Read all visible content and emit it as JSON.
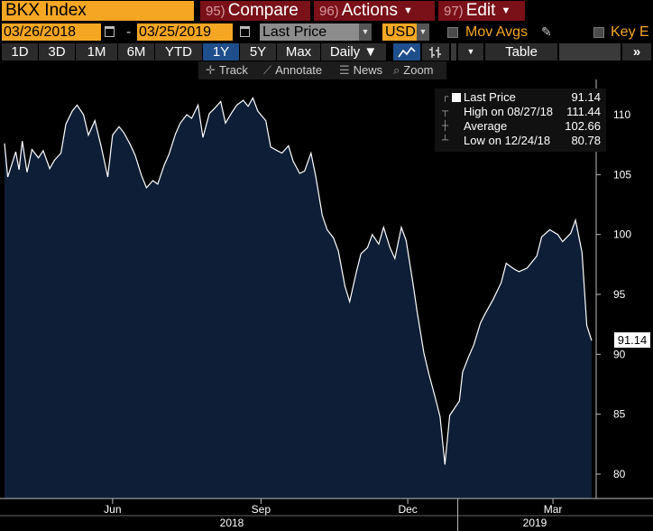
{
  "header": {
    "ticker": "BKX Index",
    "menus": [
      {
        "num": "95)",
        "label": "Compare",
        "caret": ""
      },
      {
        "num": "96)",
        "label": "Actions",
        "caret": "▼"
      },
      {
        "num": "97)",
        "label": "Edit",
        "caret": "▼"
      }
    ]
  },
  "controls": {
    "start_date": "03/26/2018",
    "separator": "-",
    "end_date": "03/25/2019",
    "field": "Last Price",
    "currency": "USD",
    "mov_avgs": "Mov Avgs",
    "key_events": "Key E"
  },
  "ranges": [
    "1D",
    "3D",
    "1M",
    "6M",
    "YTD",
    "1Y",
    "5Y",
    "Max"
  ],
  "selected_range": "1Y",
  "frequency": "Daily",
  "table_label": "Table",
  "toolbar": {
    "track": "Track",
    "annotate": "Annotate",
    "news": "News",
    "zoom": "Zoom"
  },
  "legend": [
    {
      "label": "Last Price",
      "value": "91.14"
    },
    {
      "label": "High on 08/27/18",
      "value": "111.44"
    },
    {
      "label": "Average",
      "value": "102.66"
    },
    {
      "label": "Low on 12/24/18",
      "value": "80.78"
    }
  ],
  "last_badge": "91.14",
  "colors": {
    "accent": "#f5a623",
    "menu": "#7a1018",
    "selected": "#1f4e8c",
    "area_fill": "#0e1e36",
    "line": "#ffffff"
  },
  "chart_data": {
    "type": "area",
    "y_ticks": [
      80,
      85,
      90,
      95,
      100,
      105,
      110
    ],
    "ylim": [
      77.5,
      114.0
    ],
    "x_tick_labels": [
      "Jun",
      "Sep",
      "Dec",
      "Mar"
    ],
    "x_year_labels": [
      "2018",
      "2019"
    ],
    "series": [
      {
        "name": "Last Price",
        "x": [
          "2018-03-26",
          "2018-03-28",
          "2018-04-02",
          "2018-04-04",
          "2018-04-06",
          "2018-04-09",
          "2018-04-12",
          "2018-04-16",
          "2018-04-19",
          "2018-04-23",
          "2018-04-26",
          "2018-04-30",
          "2018-05-03",
          "2018-05-07",
          "2018-05-10",
          "2018-05-14",
          "2018-05-17",
          "2018-05-21",
          "2018-05-25",
          "2018-05-29",
          "2018-06-01",
          "2018-06-05",
          "2018-06-08",
          "2018-06-12",
          "2018-06-15",
          "2018-06-19",
          "2018-06-22",
          "2018-06-26",
          "2018-06-29",
          "2018-07-03",
          "2018-07-06",
          "2018-07-10",
          "2018-07-13",
          "2018-07-17",
          "2018-07-20",
          "2018-07-24",
          "2018-07-27",
          "2018-07-31",
          "2018-08-03",
          "2018-08-07",
          "2018-08-10",
          "2018-08-14",
          "2018-08-17",
          "2018-08-21",
          "2018-08-24",
          "2018-08-27",
          "2018-08-30",
          "2018-09-04",
          "2018-09-07",
          "2018-09-11",
          "2018-09-14",
          "2018-09-18",
          "2018-09-21",
          "2018-09-25",
          "2018-09-28",
          "2018-10-02",
          "2018-10-05",
          "2018-10-09",
          "2018-10-12",
          "2018-10-16",
          "2018-10-19",
          "2018-10-23",
          "2018-10-26",
          "2018-10-30",
          "2018-11-02",
          "2018-11-06",
          "2018-11-09",
          "2018-11-13",
          "2018-11-16",
          "2018-11-20",
          "2018-11-23",
          "2018-11-27",
          "2018-11-30",
          "2018-12-04",
          "2018-12-07",
          "2018-12-11",
          "2018-12-14",
          "2018-12-18",
          "2018-12-21",
          "2018-12-24",
          "2018-12-27",
          "2019-01-02",
          "2019-01-04",
          "2019-01-08",
          "2019-01-11",
          "2019-01-15",
          "2019-01-18",
          "2019-01-23",
          "2019-01-28",
          "2019-01-31",
          "2019-02-05",
          "2019-02-08",
          "2019-02-13",
          "2019-02-19",
          "2019-02-22",
          "2019-02-27",
          "2019-03-04",
          "2019-03-07",
          "2019-03-12",
          "2019-03-15",
          "2019-03-19",
          "2019-03-22",
          "2019-03-25"
        ],
        "values": [
          107.6,
          104.8,
          106.9,
          105.4,
          107.8,
          105.2,
          107.1,
          106.4,
          107.0,
          105.5,
          106.2,
          106.8,
          109.2,
          110.3,
          110.8,
          110.0,
          108.3,
          109.5,
          107.3,
          104.8,
          108.3,
          109.0,
          108.5,
          107.5,
          106.6,
          104.9,
          103.9,
          104.5,
          104.2,
          105.8,
          106.7,
          108.4,
          109.3,
          110.0,
          109.7,
          110.8,
          108.1,
          110.1,
          110.5,
          111.1,
          109.3,
          110.2,
          110.8,
          111.2,
          110.7,
          111.4,
          110.3,
          109.5,
          107.3,
          107.0,
          106.8,
          107.4,
          106.1,
          105.1,
          105.3,
          106.8,
          104.8,
          101.6,
          100.4,
          99.7,
          98.6,
          95.7,
          94.4,
          96.8,
          98.4,
          98.9,
          100.0,
          99.2,
          100.6,
          98.9,
          98.0,
          100.6,
          99.5,
          96.1,
          93.4,
          90.1,
          88.4,
          86.4,
          84.8,
          80.8,
          84.9,
          86.1,
          88.5,
          89.9,
          90.8,
          92.6,
          93.4,
          94.6,
          96.0,
          97.6,
          97.1,
          96.9,
          97.2,
          98.2,
          99.8,
          100.4,
          100.0,
          99.4,
          100.1,
          101.2,
          98.5,
          92.4,
          91.14
        ]
      }
    ]
  }
}
